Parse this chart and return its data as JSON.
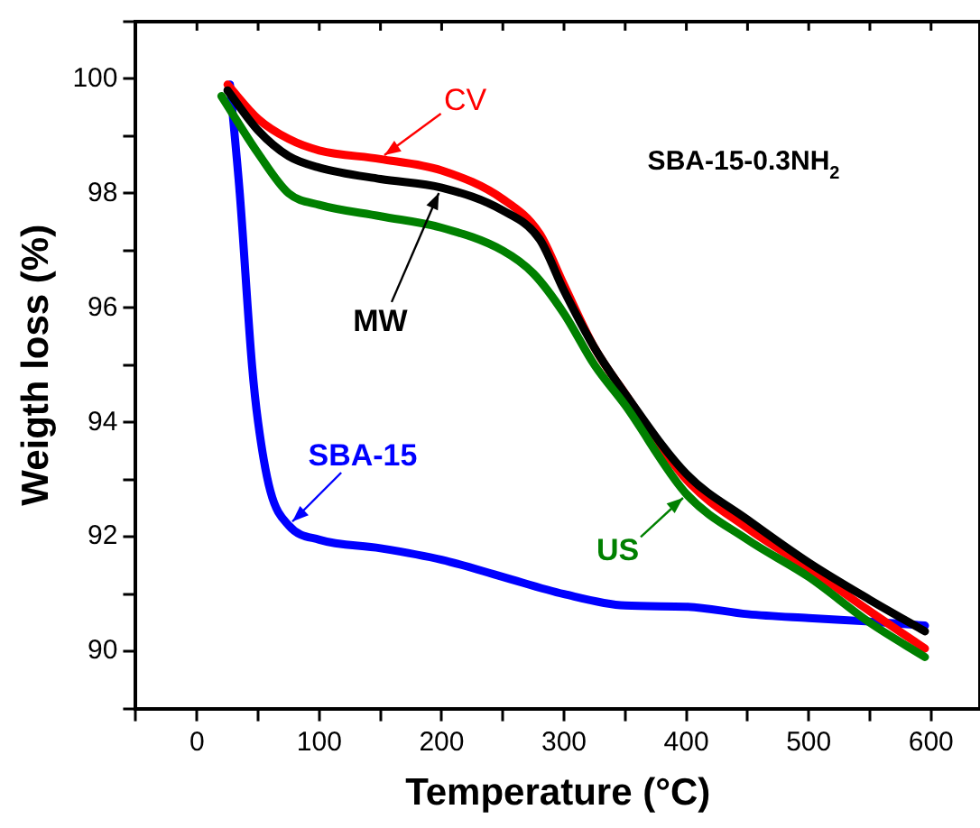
{
  "chart_data": {
    "type": "line",
    "xlabel": "Temperature (°C)",
    "ylabel": "Weigth loss (%)",
    "annotations": [
      "SBA-15-0.3NH$_{2}$"
    ],
    "xlim": [
      -50,
      640
    ],
    "xticks": [
      {
        "value": -50,
        "label": null
      },
      0,
      {
        "value": 50,
        "label": null
      },
      100,
      {
        "value": 150,
        "label": null
      },
      200,
      {
        "value": 250,
        "label": null
      },
      300,
      {
        "value": 350,
        "label": null
      },
      400,
      {
        "value": 450,
        "label": null
      },
      500,
      {
        "value": 550,
        "label": null
      },
      600
    ],
    "ylim": [
      89,
      101
    ],
    "yticks": [
      {
        "value": 89,
        "label": null
      },
      90,
      {
        "value": 91,
        "label": null
      },
      92,
      {
        "value": 93,
        "label": null
      },
      94,
      {
        "value": 95,
        "label": null
      },
      96,
      {
        "value": 97,
        "label": null
      },
      98,
      {
        "value": 99,
        "label": null
      },
      100,
      {
        "value": 101,
        "label": null
      }
    ],
    "grid": false,
    "marker": "none",
    "line_style": "solid",
    "series": [
      {
        "name": "US",
        "color": "#008000",
        "x": [
          20,
          50,
          75,
          100,
          150,
          200,
          250,
          275,
          300,
          325,
          350,
          400,
          450,
          500,
          550,
          595
        ],
        "values": [
          99.7,
          98.7,
          98.0,
          97.8,
          97.6,
          97.4,
          97.0,
          96.6,
          95.9,
          95.0,
          94.3,
          92.75,
          91.95,
          91.3,
          90.5,
          89.9
        ]
      },
      {
        "name": "MW",
        "color": "#000000",
        "x": [
          25,
          50,
          75,
          100,
          150,
          200,
          250,
          280,
          300,
          325,
          350,
          400,
          450,
          500,
          550,
          595
        ],
        "values": [
          99.8,
          99.1,
          98.65,
          98.45,
          98.25,
          98.1,
          97.7,
          97.2,
          96.3,
          95.3,
          94.5,
          93.1,
          92.3,
          91.55,
          90.9,
          90.35
        ]
      },
      {
        "name": "CV",
        "color": "#ff0000",
        "x": [
          25,
          50,
          75,
          100,
          150,
          200,
          250,
          280,
          300,
          325,
          350,
          400,
          450,
          500,
          550,
          595
        ],
        "values": [
          99.9,
          99.3,
          98.95,
          98.75,
          98.6,
          98.4,
          97.9,
          97.3,
          96.4,
          95.3,
          94.5,
          93.0,
          92.15,
          91.45,
          90.7,
          90.05
        ]
      },
      {
        "name": "SBA-15",
        "color": "#0000ff",
        "x": [
          27,
          35,
          45,
          50,
          60,
          75,
          100,
          150,
          200,
          250,
          300,
          350,
          400,
          450,
          500,
          550,
          595
        ],
        "values": [
          99.9,
          98.0,
          95.0,
          94.0,
          92.8,
          92.2,
          91.95,
          91.8,
          91.6,
          91.3,
          91.0,
          90.8,
          90.78,
          90.65,
          90.58,
          90.52,
          90.45
        ]
      }
    ]
  }
}
